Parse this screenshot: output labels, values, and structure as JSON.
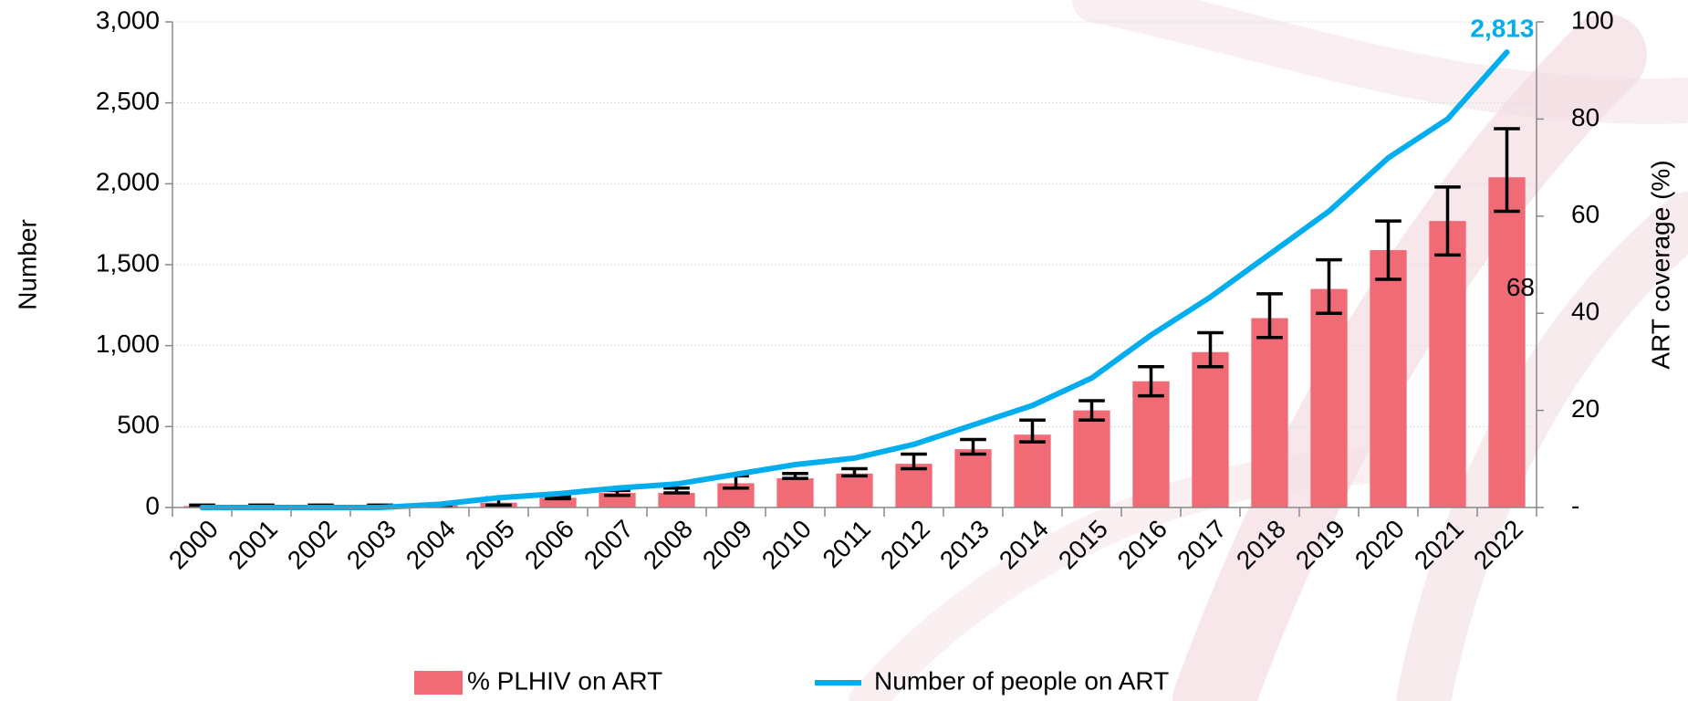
{
  "chart_data": {
    "type": "bar-line",
    "categories": [
      "2000",
      "2001",
      "2002",
      "2003",
      "2004",
      "2005",
      "2006",
      "2007",
      "2008",
      "2009",
      "2010",
      "2011",
      "2012",
      "2013",
      "2014",
      "2015",
      "2016",
      "2017",
      "2018",
      "2019",
      "2020",
      "2021",
      "2022"
    ],
    "y_label": "Number",
    "y2_label": "ART coverage (%)",
    "ylim": [
      0,
      3000
    ],
    "yticks": [
      0,
      {
        "value": 500,
        "label": "500"
      },
      {
        "value": 1000,
        "label": "1,000"
      },
      {
        "value": 1500,
        "label": "1,500"
      },
      {
        "value": 2000,
        "label": "2,000"
      },
      {
        "value": 2500,
        "label": "2,500"
      },
      {
        "value": 3000,
        "label": "3,000"
      }
    ],
    "y2lim": [
      0,
      100
    ],
    "y2ticks": [
      {
        "value": 0,
        "label": "-"
      },
      20,
      40,
      60,
      80,
      100
    ],
    "grid": true,
    "series": [
      {
        "name": "% PLHIV on ART",
        "type": "bar",
        "axis": "y2",
        "color": "#f06b75",
        "values": [
          0.3,
          0.3,
          0.3,
          0.3,
          0.5,
          1,
          2,
          3,
          3,
          5,
          6,
          7,
          9,
          12,
          15,
          20,
          26,
          32,
          39,
          45,
          53,
          59,
          68
        ],
        "lower": [
          0.2,
          0.2,
          0.2,
          0.2,
          0.2,
          0.5,
          1.8,
          2.5,
          3,
          4,
          6,
          6.5,
          8,
          11,
          13.5,
          18,
          23,
          29,
          35,
          40,
          47,
          52,
          61
        ],
        "upper": [
          0.5,
          0.5,
          0.5,
          0.5,
          0.5,
          2,
          2.2,
          3.5,
          4,
          6.5,
          7,
          8,
          11,
          14,
          18,
          22,
          29,
          36,
          44,
          51,
          59,
          66,
          78
        ],
        "value_labels": [
          null,
          null,
          null,
          null,
          null,
          null,
          null,
          null,
          null,
          null,
          null,
          null,
          null,
          null,
          null,
          null,
          null,
          null,
          null,
          null,
          null,
          null,
          "68"
        ]
      },
      {
        "name": "Number of people on ART",
        "type": "line",
        "color": "#00aeef",
        "values": [
          0,
          0,
          0,
          0,
          20,
          60,
          85,
          120,
          145,
          205,
          265,
          305,
          390,
          510,
          630,
          800,
          1065,
          1300,
          1565,
          1830,
          2160,
          2400,
          2813
        ],
        "value_labels": [
          null,
          null,
          null,
          null,
          null,
          null,
          null,
          null,
          null,
          null,
          null,
          null,
          null,
          null,
          null,
          null,
          null,
          null,
          null,
          null,
          null,
          null,
          "2,813"
        ]
      }
    ]
  }
}
